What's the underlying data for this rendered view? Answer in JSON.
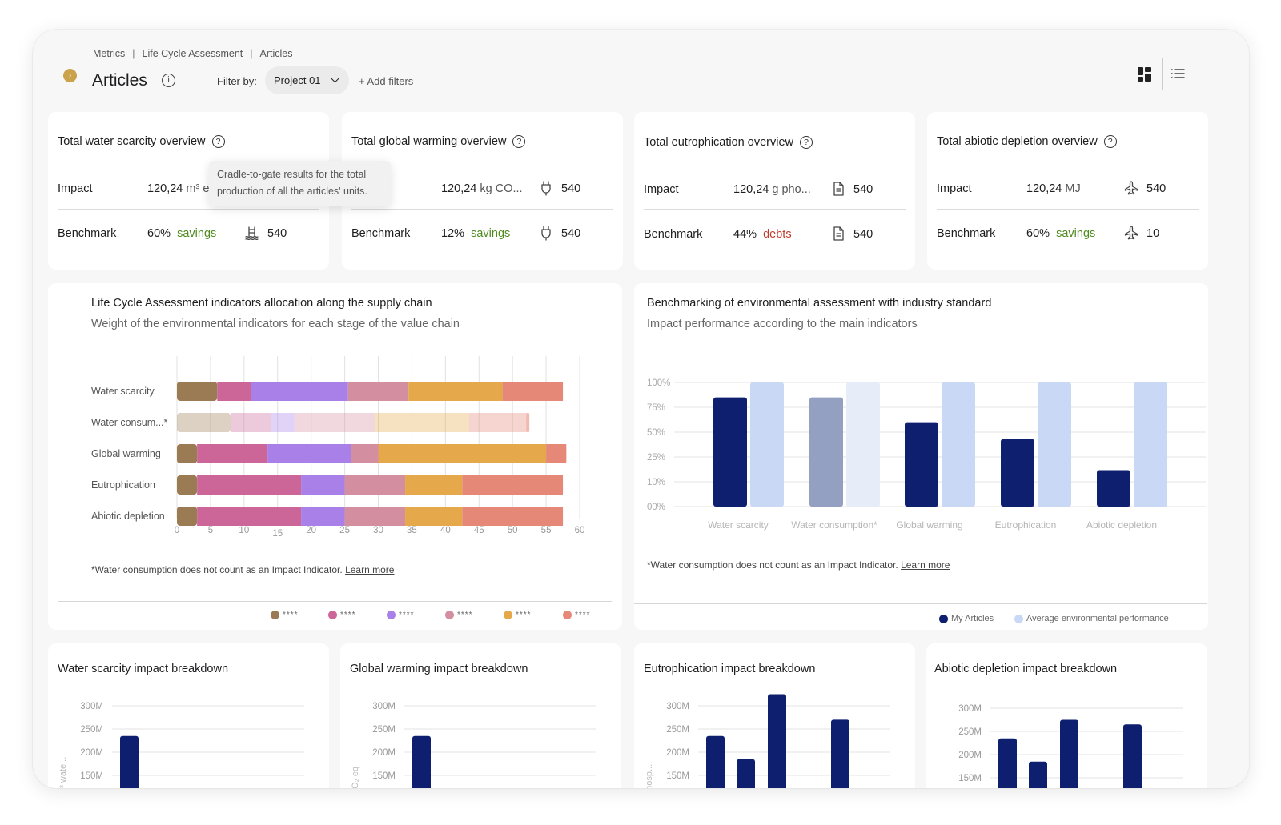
{
  "breadcrumb": [
    "Metrics",
    "Life Cycle Assessment",
    "Articles"
  ],
  "header": {
    "title": "Articles",
    "filter_label": "Filter by:",
    "filter_value": "Project 01",
    "add_filters": "+ Add filters"
  },
  "kpis": [
    {
      "title": "Total water scarcity overview",
      "impact_label": "Impact",
      "impact_value": "120,24",
      "impact_unit": "m³ e",
      "impact_icon": "",
      "impact_count": "",
      "bench_label": "Benchmark",
      "bench_pct": "60%",
      "bench_kind": "savings",
      "bench_icon": "water-waves-icon",
      "bench_count": "540"
    },
    {
      "title": "Total global warming overview",
      "impact_label": "",
      "impact_value": "120,24",
      "impact_unit": "kg CO...",
      "impact_icon": "plug-icon",
      "impact_count": "540",
      "bench_label": "Benchmark",
      "bench_pct": "12%",
      "bench_kind": "savings",
      "bench_icon": "plug-icon",
      "bench_count": "540"
    },
    {
      "title": "Total eutrophication overview",
      "impact_label": "Impact",
      "impact_value": "120,24",
      "impact_unit": "g pho...",
      "impact_icon": "document-icon",
      "impact_count": "540",
      "bench_label": "Benchmark",
      "bench_pct": "44%",
      "bench_kind": "debts",
      "bench_icon": "document-icon",
      "bench_count": "540"
    },
    {
      "title": "Total abiotic depletion overview",
      "impact_label": "Impact",
      "impact_value": "120,24",
      "impact_unit": "MJ",
      "impact_icon": "airplane-icon",
      "impact_count": "540",
      "bench_label": "Benchmark",
      "bench_pct": "60%",
      "bench_kind": "savings",
      "bench_icon": "airplane-icon",
      "bench_count": "10"
    }
  ],
  "tooltip": {
    "line1": "Cradle-to-gate results for the total",
    "line2": "production of all the articles' units."
  },
  "lca_chart": {
    "title": "Life Cycle Assessment indicators allocation along the supply chain",
    "subtitle": "Weight of the environmental indicators for each stage of the value chain",
    "note": "*Water consumption does not count as an Impact Indicator.",
    "learn_more": "Learn more",
    "legend": [
      "****",
      "****",
      "****",
      "****",
      "****",
      "****"
    ],
    "colors": [
      "#9b7b53",
      "#cc6698",
      "#a880e8",
      "#d38fa0",
      "#e5a94c",
      "#e68878"
    ]
  },
  "bench_chart": {
    "title": "Benchmarking of environmental assessment with industry standard",
    "subtitle": "Impact performance according to the main indicators",
    "note": "*Water consumption does not count as an Impact Indicator.",
    "learn_more": "Learn more",
    "legend": [
      {
        "label": "My Articles",
        "color": "#0d1f6e"
      },
      {
        "label": "Average environmental performance",
        "color": "#c9d9f5"
      }
    ]
  },
  "breakdowns": [
    {
      "title": "Water scarcity impact breakdown",
      "ylabel": "m³ wate..."
    },
    {
      "title": "Global warming impact breakdown",
      "ylabel": "CO₂ eq"
    },
    {
      "title": "Eutrophication impact breakdown",
      "ylabel": "phosp..."
    },
    {
      "title": "Abiotic depletion impact breakdown",
      "ylabel": "m..."
    }
  ],
  "chart_data": [
    {
      "type": "bar",
      "orientation": "horizontal-stacked",
      "categories": [
        "Water scarcity",
        "Water consum...*",
        "Global warming",
        "Eutrophication",
        "Abiotic depletion"
      ],
      "x_ticks": [
        "0",
        "5",
        "10",
        "15",
        "20",
        "25",
        "30",
        "35",
        "40",
        "45",
        "50",
        "55",
        "60"
      ],
      "xlim": [
        0,
        60
      ],
      "series": [
        {
          "name": "****",
          "values": [
            6,
            8,
            3,
            3,
            3
          ]
        },
        {
          "name": "****",
          "values": [
            5,
            6,
            10.5,
            15.5,
            15.5
          ]
        },
        {
          "name": "****",
          "values": [
            14.5,
            3.5,
            12.5,
            6.5,
            6.5
          ]
        },
        {
          "name": "****",
          "values": [
            9,
            12,
            4,
            9,
            9
          ]
        },
        {
          "name": "****",
          "values": [
            14,
            14,
            25,
            8.5,
            8.5
          ]
        },
        {
          "name": "****",
          "values": [
            9,
            9,
            3,
            15,
            15
          ]
        }
      ],
      "faded_rows": [
        1
      ]
    },
    {
      "type": "bar",
      "categories": [
        "Water scarcity",
        "Water consumption*",
        "Global warming",
        "Eutrophication",
        "Abiotic depletion"
      ],
      "y_ticks": [
        "00%",
        "10%",
        "25%",
        "50%",
        "75%",
        "100%"
      ],
      "series": [
        {
          "name": "My Articles",
          "values": [
            85,
            85,
            60,
            43,
            17
          ]
        },
        {
          "name": "Average environmental performance",
          "values": [
            100,
            100,
            100,
            100,
            100
          ]
        }
      ],
      "faded_categories": [
        1
      ],
      "legend_position": "bottom-right"
    },
    {
      "type": "bar",
      "title": "Water scarcity impact breakdown",
      "y_ticks": [
        "300M",
        "250M",
        "200M",
        "150M"
      ],
      "values": [
        235
      ]
    },
    {
      "type": "bar",
      "title": "Global warming impact breakdown",
      "y_ticks": [
        "300M",
        "250M",
        "200M",
        "150M"
      ],
      "values": [
        235
      ]
    },
    {
      "type": "bar",
      "title": "Eutrophication impact breakdown",
      "y_ticks": [
        "300M",
        "250M",
        "200M",
        "150M"
      ],
      "values": [
        235,
        185,
        325,
        270
      ]
    },
    {
      "type": "bar",
      "title": "Abiotic depletion impact breakdown",
      "y_ticks": [
        "300M",
        "250M",
        "200M",
        "150M"
      ],
      "values": [
        235,
        185,
        275,
        265
      ]
    }
  ]
}
